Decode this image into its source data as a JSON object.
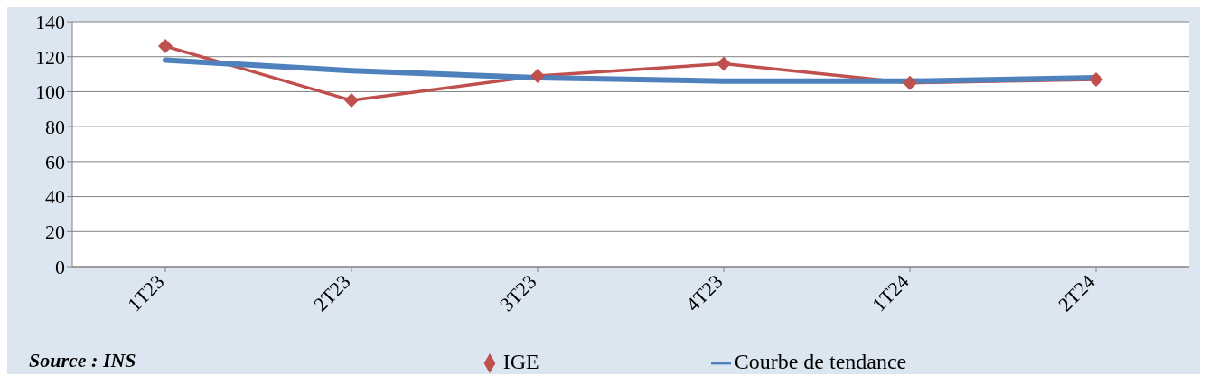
{
  "chart_data": {
    "type": "line",
    "categories": [
      "1T23",
      "2T23",
      "3T23",
      "4T23",
      "1T24",
      "2T24"
    ],
    "series": [
      {
        "name": "IGE",
        "color": "#c0504d",
        "values": [
          126,
          95,
          109,
          116,
          105,
          107
        ],
        "marker": "diamond"
      },
      {
        "name": "Courbe de tendance",
        "color": "#4f81bd",
        "values": [
          118,
          112,
          108,
          106,
          106,
          108
        ],
        "marker": "none"
      }
    ],
    "ylim": [
      0,
      140
    ],
    "yticks": [
      0,
      20,
      40,
      60,
      80,
      100,
      120,
      140
    ],
    "grid": "y",
    "legend": "bottom",
    "annotations": [
      "Source : INS"
    ]
  }
}
